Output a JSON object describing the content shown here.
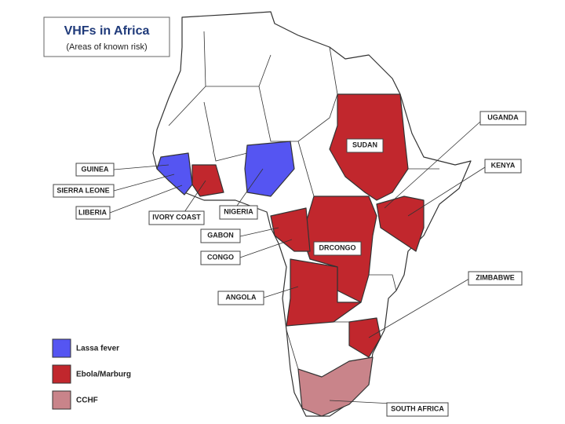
{
  "title": "VHFs in Africa",
  "subtitle": "(Areas of known risk)",
  "labels": [
    "GUINEA",
    "SIERRA LEONE",
    "LIBERIA",
    "IVORY COAST",
    "NIGERIA",
    "GABON",
    "CONGO",
    "DRCONGO",
    "ANGOLA",
    "SUDAN",
    "UGANDA",
    "KENYA",
    "ZIMBABWE",
    "SOUTH AFRICA"
  ],
  "legend": [
    {
      "label": "Lassa fever",
      "color": "#5555f2"
    },
    {
      "label": "Ebola/Marburg",
      "color": "#c1272d"
    },
    {
      "label": "CCHF",
      "color": "#c9848a"
    }
  ]
}
